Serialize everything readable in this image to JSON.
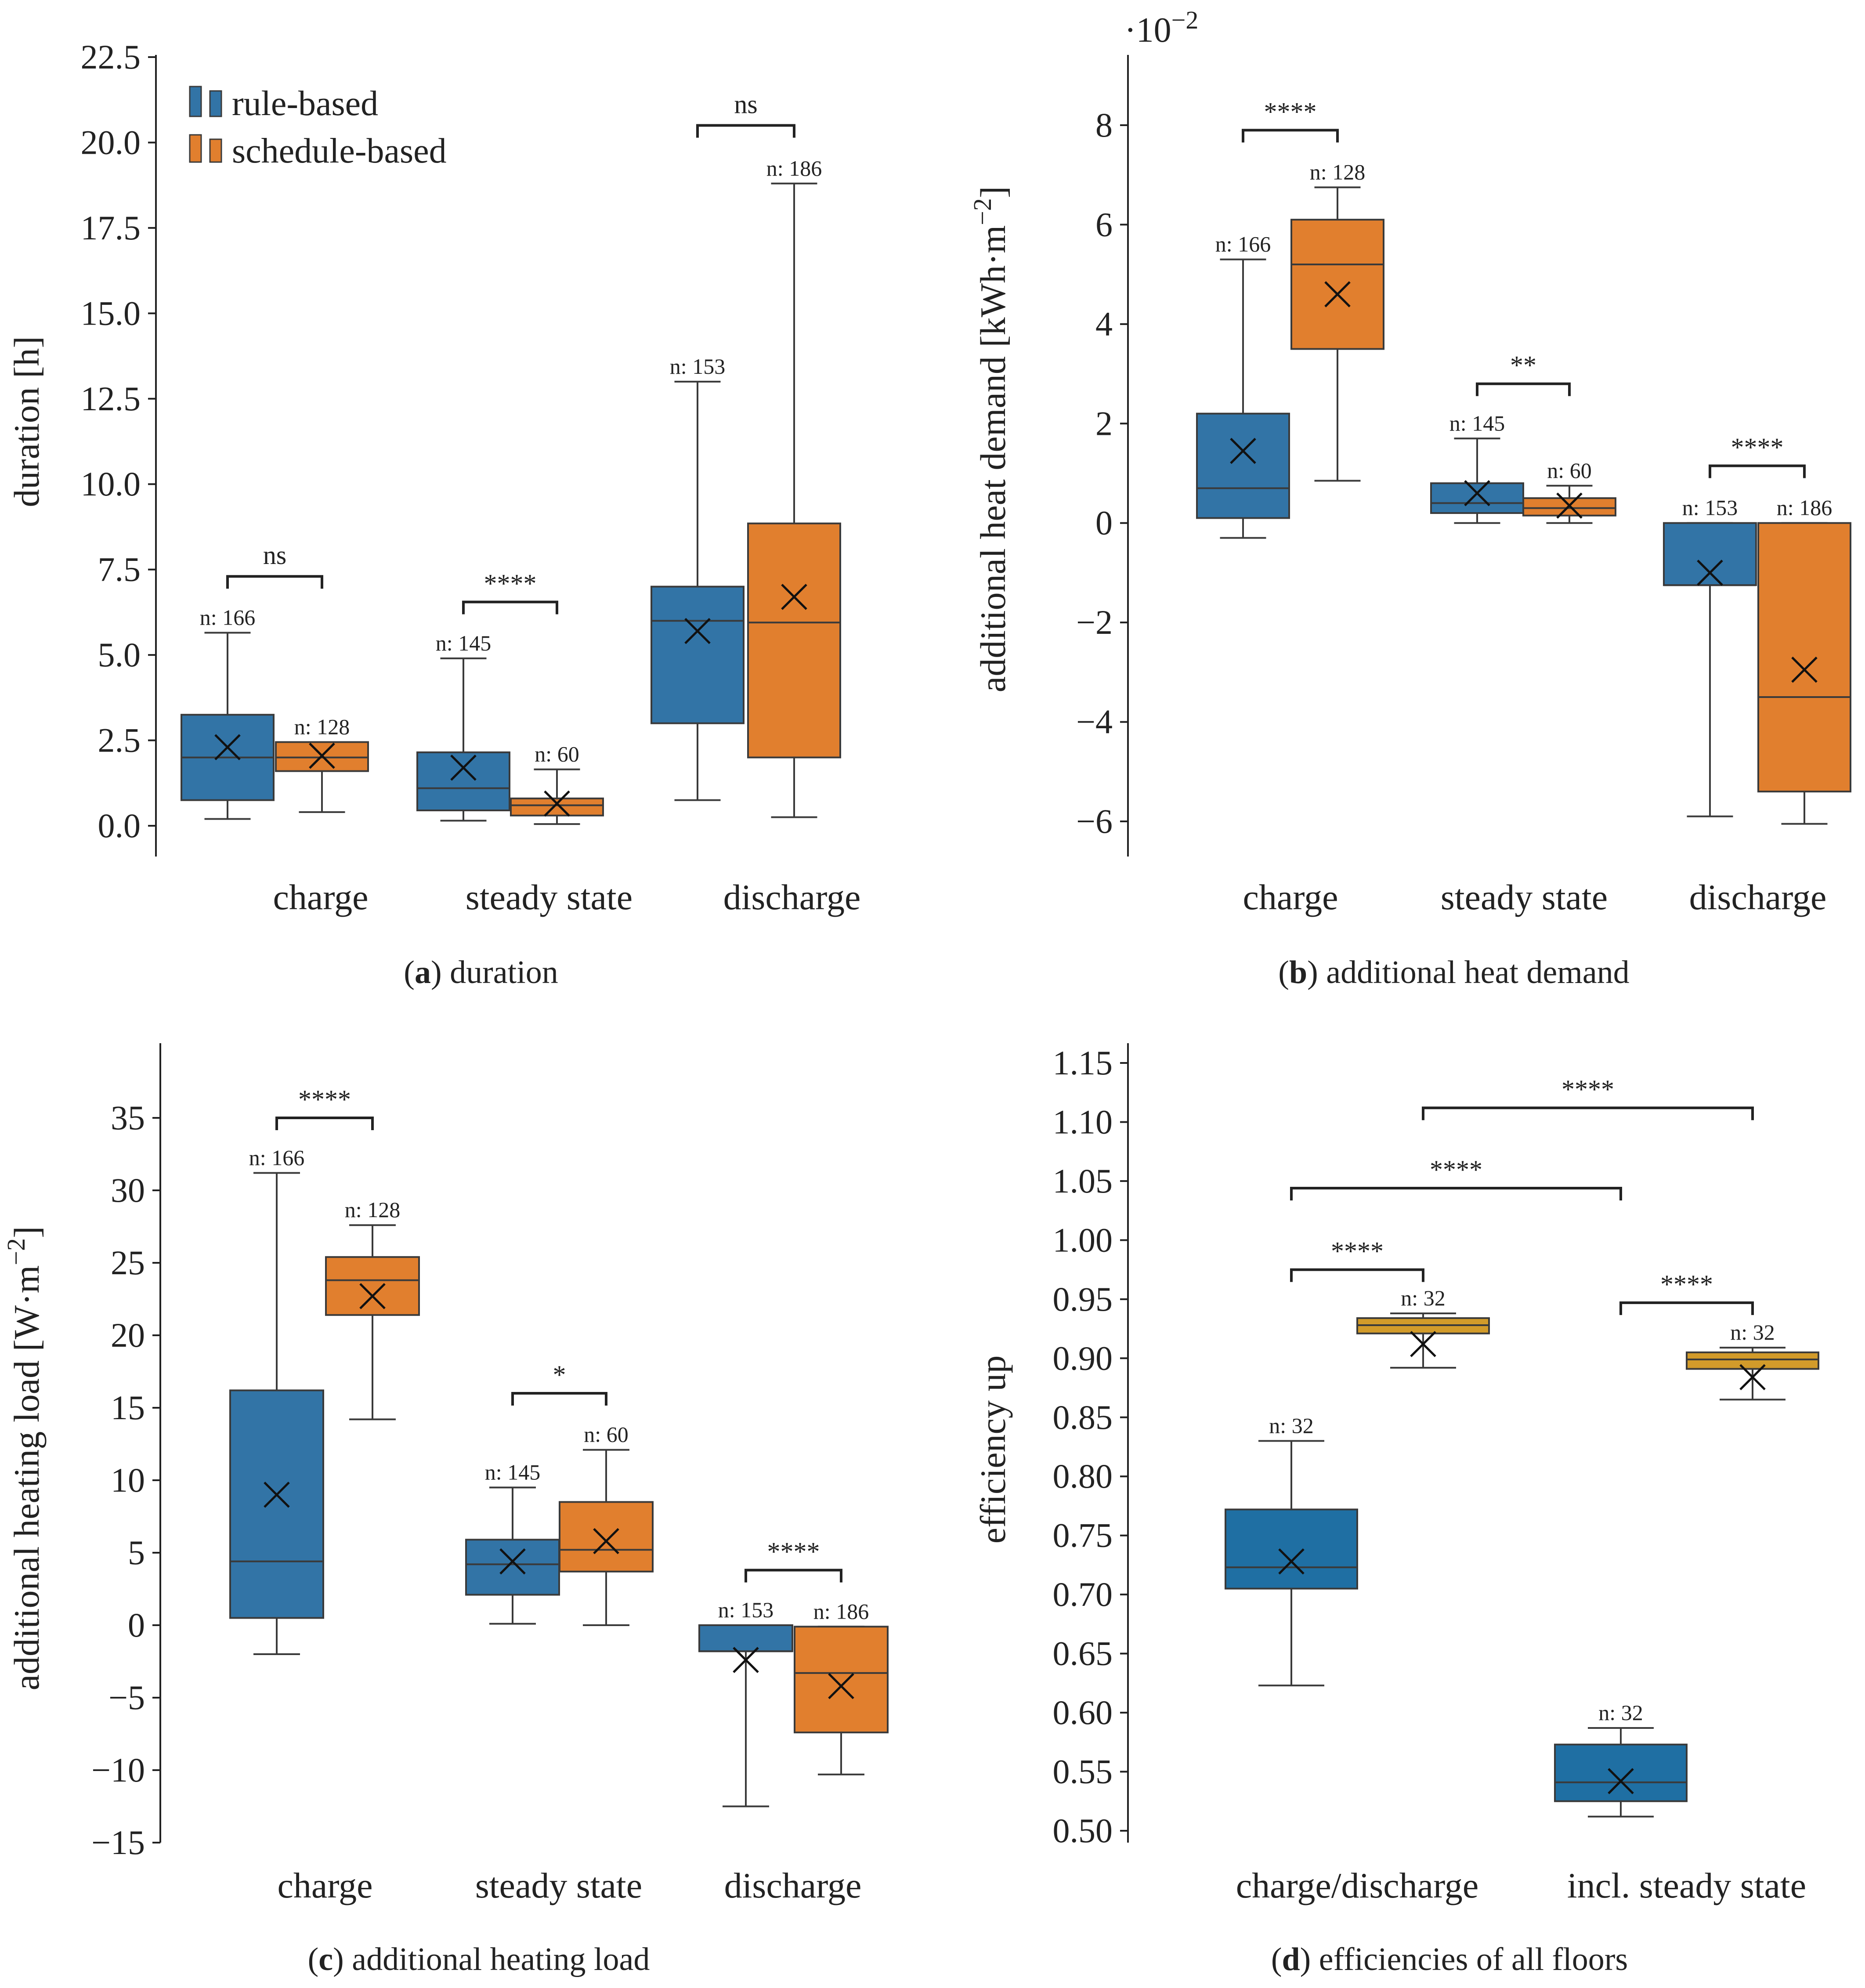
{
  "colors": {
    "rule_based": "#3274a6",
    "schedule_based": "#e17f2e",
    "efficiency_blue": "#1f6fa3",
    "efficiency_gold": "#d29b2a"
  },
  "legend": {
    "items": [
      {
        "label": "rule-based",
        "color": "#3274a6"
      },
      {
        "label": "schedule-based",
        "color": "#e17f2e"
      }
    ]
  },
  "chart_data": [
    {
      "id": "a",
      "type": "box",
      "caption": {
        "letter": "a",
        "text": ") duration"
      },
      "ylabel": "duration [h]",
      "ylim": [
        -0.8,
        22.5
      ],
      "yticks": [
        0.0,
        2.5,
        5.0,
        7.5,
        10.0,
        12.5,
        15.0,
        17.5,
        20.0,
        22.5
      ],
      "ytick_labels": [
        "0.0",
        "2.5",
        "5.0",
        "7.5",
        "10.0",
        "12.5",
        "15.0",
        "17.5",
        "20.0",
        "22.5"
      ],
      "categories": [
        "charge",
        "steady state",
        "discharge"
      ],
      "boxes": [
        {
          "cat": 0,
          "series": "rule-based",
          "color": "#3274a6",
          "whislo": 0.2,
          "q1": 0.75,
          "med": 2.0,
          "q3": 3.25,
          "whishi": 5.65,
          "mean": 2.3,
          "n": "n: 166"
        },
        {
          "cat": 0,
          "series": "schedule-based",
          "color": "#e17f2e",
          "whislo": 0.4,
          "q1": 1.6,
          "med": 2.0,
          "q3": 2.45,
          "whishi": 2.45,
          "mean": 2.05,
          "n": "n: 128"
        },
        {
          "cat": 1,
          "series": "rule-based",
          "color": "#3274a6",
          "whislo": 0.15,
          "q1": 0.45,
          "med": 1.1,
          "q3": 2.15,
          "whishi": 4.9,
          "mean": 1.7,
          "n": "n: 145"
        },
        {
          "cat": 1,
          "series": "schedule-based",
          "color": "#e17f2e",
          "whislo": 0.05,
          "q1": 0.3,
          "med": 0.6,
          "q3": 0.8,
          "whishi": 1.65,
          "mean": 0.65,
          "n": "n: 60"
        },
        {
          "cat": 2,
          "series": "rule-based",
          "color": "#3274a6",
          "whislo": 0.75,
          "q1": 3.0,
          "med": 6.0,
          "q3": 7.0,
          "whishi": 13.0,
          "mean": 5.7,
          "n": "n: 153"
        },
        {
          "cat": 2,
          "series": "schedule-based",
          "color": "#e17f2e",
          "whislo": 0.25,
          "q1": 2.0,
          "med": 5.95,
          "q3": 8.85,
          "whishi": 18.8,
          "mean": 6.7,
          "n": "n: 186"
        }
      ],
      "significance": [
        {
          "from": 0,
          "to": 1,
          "level": 7.3,
          "label": "ns"
        },
        {
          "from": 2,
          "to": 3,
          "level": 6.55,
          "label": "****"
        },
        {
          "from": 4,
          "to": 5,
          "level": 20.5,
          "label": "ns"
        }
      ]
    },
    {
      "id": "b",
      "type": "box",
      "caption": {
        "letter": "b",
        "text": ") additional heat demand"
      },
      "ylabel": "additional heat demand [kWh·m",
      "ylabel_exp": "−2",
      "ylabel_end": "]",
      "multiplier_base": "·10",
      "multiplier_exp": "−2",
      "ylim": [
        -6.7,
        9.3
      ],
      "yticks": [
        -6,
        -4,
        -2,
        0,
        2,
        4,
        6,
        8
      ],
      "ytick_labels": [
        "−6",
        "−4",
        "−2",
        "0",
        "2",
        "4",
        "6",
        "8"
      ],
      "categories": [
        "charge",
        "steady state",
        "discharge"
      ],
      "boxes": [
        {
          "cat": 0,
          "series": "rule-based",
          "color": "#3274a6",
          "whislo": -0.3,
          "q1": 0.1,
          "med": 0.7,
          "q3": 2.2,
          "whishi": 5.3,
          "mean": 1.45,
          "n": "n: 166"
        },
        {
          "cat": 0,
          "series": "schedule-based",
          "color": "#e17f2e",
          "whislo": 0.85,
          "q1": 3.5,
          "med": 5.2,
          "q3": 6.1,
          "whishi": 6.75,
          "mean": 4.6,
          "n": "n: 128"
        },
        {
          "cat": 1,
          "series": "rule-based",
          "color": "#3274a6",
          "whislo": 0.0,
          "q1": 0.2,
          "med": 0.4,
          "q3": 0.8,
          "whishi": 1.7,
          "mean": 0.6,
          "n": "n: 145"
        },
        {
          "cat": 1,
          "series": "schedule-based",
          "color": "#e17f2e",
          "whislo": 0.0,
          "q1": 0.15,
          "med": 0.3,
          "q3": 0.5,
          "whishi": 0.75,
          "mean": 0.35,
          "n": "n: 60"
        },
        {
          "cat": 2,
          "series": "rule-based",
          "color": "#3274a6",
          "whislo": -5.9,
          "q1": -1.25,
          "med": -1.25,
          "q3": 0.0,
          "whishi": 0.0,
          "mean": -1.0,
          "n": "n: 153"
        },
        {
          "cat": 2,
          "series": "schedule-based",
          "color": "#e17f2e",
          "whislo": -6.05,
          "q1": -5.4,
          "med": -3.5,
          "q3": 0.0,
          "whishi": 0.0,
          "mean": -2.95,
          "n": "n: 186"
        }
      ],
      "significance": [
        {
          "from": 0,
          "to": 1,
          "level": 7.9,
          "label": "****"
        },
        {
          "from": 2,
          "to": 3,
          "level": 2.8,
          "label": "**"
        },
        {
          "from": 4,
          "to": 5,
          "level": 1.15,
          "label": "****"
        }
      ]
    },
    {
      "id": "c",
      "type": "box",
      "caption": {
        "letter": "c",
        "text": ") additional heating load"
      },
      "ylabel": "additional heating load [W·m",
      "ylabel_exp": "−2",
      "ylabel_end": "]",
      "ylim": [
        -15,
        40
      ],
      "yticks": [
        -15,
        -10,
        -5,
        0,
        5,
        10,
        15,
        20,
        25,
        30,
        35
      ],
      "ytick_labels": [
        "−15",
        "−10",
        "−5",
        "0",
        "5",
        "10",
        "15",
        "20",
        "25",
        "30",
        "35"
      ],
      "categories": [
        "charge",
        "steady state",
        "discharge"
      ],
      "boxes": [
        {
          "cat": 0,
          "series": "rule-based",
          "color": "#3274a6",
          "whislo": -2.0,
          "q1": 0.5,
          "med": 4.4,
          "q3": 16.2,
          "whishi": 31.2,
          "mean": 9.0,
          "n": "n: 166"
        },
        {
          "cat": 0,
          "series": "schedule-based",
          "color": "#e17f2e",
          "whislo": 14.2,
          "q1": 21.4,
          "med": 23.8,
          "q3": 25.4,
          "whishi": 27.6,
          "mean": 22.7,
          "n": "n: 128"
        },
        {
          "cat": 1,
          "series": "rule-based",
          "color": "#3274a6",
          "whislo": 0.1,
          "q1": 2.1,
          "med": 4.2,
          "q3": 5.9,
          "whishi": 9.5,
          "mean": 4.4,
          "n": "n: 145"
        },
        {
          "cat": 1,
          "series": "schedule-based",
          "color": "#e17f2e",
          "whislo": 0.0,
          "q1": 3.7,
          "med": 5.2,
          "q3": 8.5,
          "whishi": 12.1,
          "mean": 5.8,
          "n": "n: 60"
        },
        {
          "cat": 2,
          "series": "rule-based",
          "color": "#3274a6",
          "whislo": -12.5,
          "q1": -1.8,
          "med": -1.8,
          "q3": 0.0,
          "whishi": 0.0,
          "mean": -2.4,
          "n": "n: 153"
        },
        {
          "cat": 2,
          "series": "schedule-based",
          "color": "#e17f2e",
          "whislo": -10.3,
          "q1": -7.4,
          "med": -3.3,
          "q3": -0.1,
          "whishi": -0.1,
          "mean": -4.2,
          "n": "n: 186"
        }
      ],
      "significance": [
        {
          "from": 0,
          "to": 1,
          "level": 35.0,
          "label": "****"
        },
        {
          "from": 2,
          "to": 3,
          "level": 16.0,
          "label": "*"
        },
        {
          "from": 4,
          "to": 5,
          "level": 3.8,
          "label": "****"
        }
      ]
    },
    {
      "id": "d",
      "type": "box",
      "caption": {
        "letter": "d",
        "text": ") efficiencies of all floors"
      },
      "ylabel": "efficiency up",
      "ylim": [
        0.495,
        1.165
      ],
      "yticks": [
        0.5,
        0.55,
        0.6,
        0.65,
        0.7,
        0.75,
        0.8,
        0.85,
        0.9,
        0.95,
        1.0,
        1.05,
        1.1,
        1.15
      ],
      "ytick_labels": [
        "0.50",
        "0.55",
        "0.60",
        "0.65",
        "0.70",
        "0.75",
        "0.80",
        "0.85",
        "0.90",
        "0.95",
        "1.00",
        "1.05",
        "1.10",
        "1.15"
      ],
      "categories": [
        "charge/discharge",
        "incl. steady state"
      ],
      "boxes": [
        {
          "cat": 0,
          "series": "blue",
          "color": "#1f6fa3",
          "whislo": 0.623,
          "q1": 0.705,
          "med": 0.723,
          "q3": 0.772,
          "whishi": 0.83,
          "mean": 0.728,
          "n": "n: 32"
        },
        {
          "cat": 0,
          "series": "gold",
          "color": "#d29b2a",
          "whislo": 0.892,
          "q1": 0.921,
          "med": 0.928,
          "q3": 0.934,
          "whishi": 0.938,
          "mean": 0.912,
          "n": "n: 32"
        },
        {
          "cat": 1,
          "series": "blue",
          "color": "#1f6fa3",
          "whislo": 0.512,
          "q1": 0.525,
          "med": 0.541,
          "q3": 0.573,
          "whishi": 0.587,
          "mean": 0.542,
          "n": "n: 32"
        },
        {
          "cat": 1,
          "series": "gold",
          "color": "#d29b2a",
          "whislo": 0.865,
          "q1": 0.891,
          "med": 0.899,
          "q3": 0.905,
          "whishi": 0.909,
          "mean": 0.884,
          "n": "n: 32"
        }
      ],
      "significance": [
        {
          "from": 0,
          "to": 1,
          "level": 0.975,
          "label": "****"
        },
        {
          "from": 2,
          "to": 3,
          "level": 0.947,
          "label": "****"
        },
        {
          "from": 0,
          "to": 2,
          "level": 1.044,
          "label": "****"
        },
        {
          "from": 1,
          "to": 3,
          "level": 1.112,
          "label": "****"
        }
      ]
    }
  ]
}
